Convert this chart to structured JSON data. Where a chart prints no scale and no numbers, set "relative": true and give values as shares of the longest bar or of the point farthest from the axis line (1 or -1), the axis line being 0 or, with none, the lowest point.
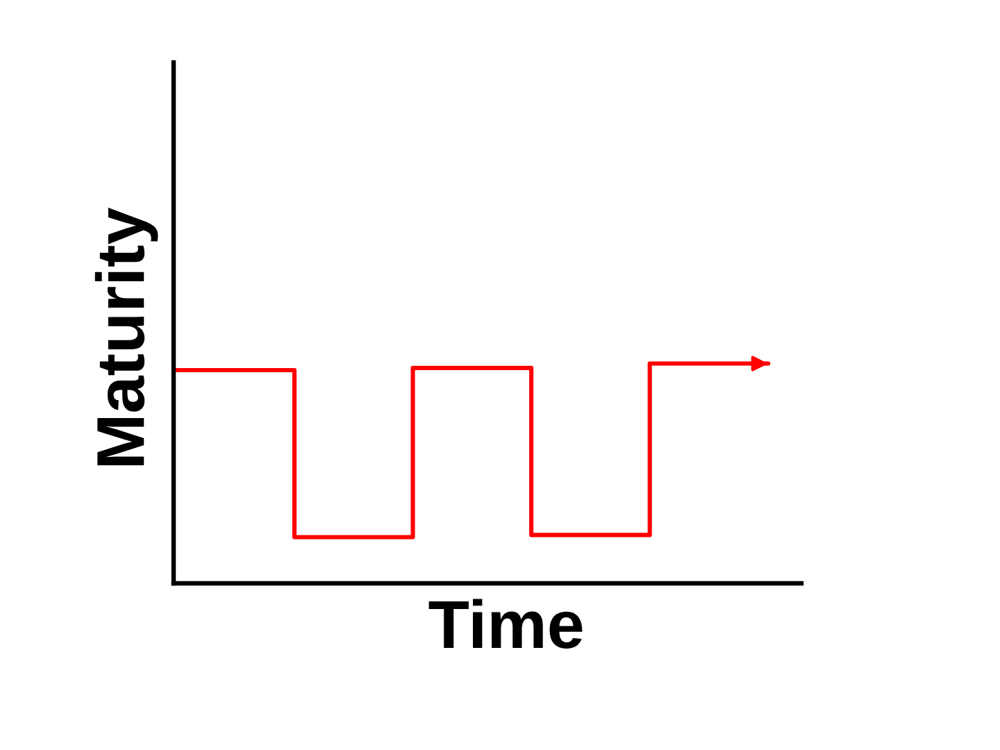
{
  "chart_data": {
    "type": "step",
    "xlabel": "Time",
    "ylabel": "Maturity",
    "relative": true,
    "categories": [
      null,
      null,
      null,
      null,
      null,
      null
    ],
    "series": [
      {
        "color": "#ff0000",
        "values": [
          0.97,
          0.21,
          0.98,
          0.22,
          1.0,
          1.0
        ]
      }
    ]
  }
}
